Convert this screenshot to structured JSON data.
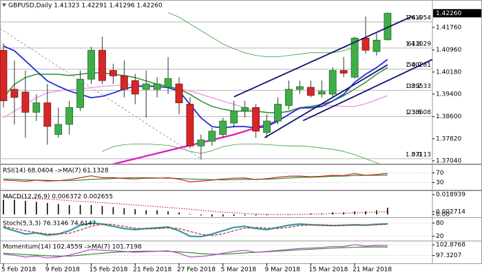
{
  "chart_data": [
    {
      "type": "candlestick",
      "title": "GBPUSD,Daily 1.41323 1.42291 1.41296 1.42260",
      "categories": [
        "5 Feb 2018",
        null,
        null,
        null,
        "9 Feb 2018",
        null,
        null,
        null,
        "15 Feb 2018",
        null,
        null,
        null,
        "21 Feb 2018",
        null,
        null,
        null,
        "27 Feb 2018",
        null,
        null,
        null,
        "5 Mar 2018",
        null,
        null,
        null,
        "9 Mar 2018",
        null,
        null,
        null,
        "15 Mar 2018",
        null,
        null,
        null,
        "21 Mar 2018",
        null,
        null,
        null
      ],
      "open": [
        1.40951,
        1.39568,
        1.39473,
        1.38757,
        1.39091,
        1.3797,
        1.38328,
        1.38924,
        1.39926,
        1.40951,
        1.40236,
        1.40045,
        1.39878,
        1.39568,
        1.39568,
        1.3964,
        1.39759,
        1.39043,
        1.37565,
        1.37732,
        1.3797,
        1.38376,
        1.38805,
        1.38924,
        1.38042,
        1.38447,
        1.38996,
        1.39568,
        1.3964,
        1.39401,
        1.39401,
        1.40236,
        1.39997,
        1.41381,
        1.40904,
        1.41323
      ],
      "high": [
        1.4119,
        1.40594,
        1.40236,
        1.39401,
        1.39759,
        1.38924,
        1.39163,
        1.40236,
        1.41071,
        1.41428,
        1.40474,
        1.40594,
        1.40117,
        1.40236,
        1.39997,
        1.40713,
        1.39997,
        1.39282,
        1.3797,
        1.38209,
        1.38566,
        1.39163,
        1.39163,
        1.39043,
        1.38686,
        1.39282,
        1.39878,
        1.39878,
        1.39878,
        1.39878,
        1.40355,
        1.40713,
        1.41428,
        1.42144,
        1.41548,
        1.42291
      ],
      "low": [
        1.38924,
        1.38328,
        1.37851,
        1.38447,
        1.37612,
        1.37851,
        1.3797,
        1.38805,
        1.39759,
        1.39759,
        1.39759,
        1.39282,
        1.39043,
        1.38566,
        1.39282,
        1.39401,
        1.38686,
        1.37493,
        1.37088,
        1.37565,
        1.37851,
        1.38209,
        1.38566,
        1.37851,
        1.37851,
        1.38328,
        1.38853,
        1.39401,
        1.39282,
        1.39282,
        1.39282,
        1.39997,
        1.3995,
        1.40832,
        1.40761,
        1.41296
      ],
      "close": [
        1.39163,
        1.39282,
        1.38757,
        1.39091,
        1.38256,
        1.38328,
        1.38924,
        1.39926,
        1.40951,
        1.39878,
        1.40045,
        1.39568,
        1.39401,
        1.39759,
        1.39759,
        1.3995,
        1.39091,
        1.37565,
        1.37779,
        1.38089,
        1.38447,
        1.38805,
        1.38924,
        1.38089,
        1.38447,
        1.39043,
        1.39568,
        1.39664,
        1.39353,
        1.39497,
        1.40236,
        1.4014,
        1.41381,
        1.40951,
        1.41309,
        1.4226
      ],
      "up_color": "#3fae49",
      "down_color": "#d62728",
      "ylim": [
        1.3694,
        1.4268
      ],
      "yticks": [
        {
          "value": 1.4176,
          "label": "1.41760"
        },
        {
          "value": 1.4096,
          "label": "1.40960"
        },
        {
          "value": 1.4018,
          "label": "1.40180"
        },
        {
          "value": 1.394,
          "label": "1.39400"
        },
        {
          "value": 1.386,
          "label": "1.38600"
        },
        {
          "value": 1.3782,
          "label": "1.37820"
        },
        {
          "value": 1.3704,
          "label": "1.37040"
        }
      ],
      "last_price": {
        "value": 1.4226,
        "label": "1.42260"
      },
      "fib_levels": [
        {
          "ratio": 76.4,
          "price": 1.41954
        },
        {
          "ratio": 61.8,
          "price": 1.41029
        },
        {
          "ratio": {
            "value": 50,
            "label": "50.0"
          },
          "price": 1.40281
        },
        {
          "ratio": 38.2,
          "price": 1.39533
        },
        {
          "ratio": 23.6,
          "price": 1.38608
        },
        {
          "ratio": {
            "value": 0,
            "label": "0.0"
          },
          "price": 1.37113
        }
      ],
      "series": [
        {
          "color": "#3a9a3a",
          "width": 0.8,
          "values": [
            null,
            null,
            null,
            null,
            null,
            null,
            null,
            null,
            null,
            null,
            null,
            null,
            null,
            null,
            null,
            1.42286,
            1.4212,
            1.41883,
            1.41645,
            1.41408,
            1.41171,
            1.41005,
            1.40862,
            1.40768,
            1.4072,
            1.4072,
            1.40768,
            1.40815,
            1.40862,
            1.40862,
            1.40862,
            1.40933,
            1.41052,
            null,
            null,
            null
          ]
        },
        {
          "color": "#3a9a3a",
          "width": 0.8,
          "values": [
            null,
            null,
            null,
            null,
            null,
            null,
            null,
            null,
            null,
            1.37374,
            1.3754,
            1.37611,
            1.37635,
            1.37635,
            1.37611,
            1.37588,
            1.37493,
            1.37374,
            1.37303,
            1.37398,
            1.3754,
            1.37611,
            1.37635,
            1.37635,
            1.37611,
            1.37588,
            1.37564,
            1.37564,
            1.3754,
            1.37493,
            1.37445,
            1.37374,
            1.37255,
            1.37113,
            1.36971,
            1.36828
          ]
        },
        {
          "color": "#eda6e3",
          "width": 1.6,
          "values": [
            1.38561,
            1.38798,
            1.39035,
            1.39272,
            1.39438,
            1.3951,
            1.39557,
            1.39581,
            1.39628,
            1.39676,
            1.397,
            1.39723,
            1.39723,
            1.397,
            1.39676,
            1.39628,
            1.39581,
            1.3951,
            1.39391,
            1.39272,
            1.39154,
            1.39035,
            1.38916,
            1.38798,
            1.3875,
            1.38727,
            1.38774,
            1.38869,
            1.38964,
            1.38988,
            1.38988,
            1.38964,
            1.38964,
            1.39059,
            1.39201,
            1.39344
          ]
        },
        {
          "color": "#e020c0",
          "width": 2.4,
          "values": [
            null,
            null,
            null,
            null,
            null,
            null,
            null,
            null,
            null,
            1.36828,
            1.36923,
            1.37018,
            1.37113,
            1.37208,
            1.37303,
            1.37398,
            1.37493,
            1.37588,
            1.37682,
            1.37777,
            1.37872,
            1.37967,
            1.38086,
            1.38205,
            1.38323,
            1.38442,
            null,
            null,
            null,
            null,
            null,
            null,
            null,
            null,
            null,
            null
          ]
        },
        {
          "color": "#2a8f2a",
          "width": 1.5,
          "values": [
            1.39272,
            1.39747,
            1.39984,
            1.40103,
            1.40103,
            1.40103,
            1.40056,
            1.40103,
            1.4015,
            1.4015,
            1.40103,
            1.40056,
            1.39984,
            1.39866,
            1.39747,
            1.39676,
            1.39581,
            1.39391,
            1.39154,
            1.38964,
            1.38869,
            1.38798,
            1.38798,
            1.38798,
            1.3875,
            1.38727,
            1.38798,
            1.38916,
            1.38964,
            1.39035,
            1.39154,
            1.39344,
            1.39581,
            1.39818,
            1.40103,
            1.4034
          ]
        },
        {
          "color": "#1a2fd0",
          "width": 1.8,
          "values": [
            1.411,
            1.40933,
            1.40578,
            1.40222,
            1.39866,
            1.39676,
            1.3951,
            1.39391,
            1.39272,
            1.3932,
            1.39438,
            1.39581,
            1.39676,
            1.39676,
            1.39676,
            1.39628,
            1.3951,
            1.39035,
            1.38561,
            1.38252,
            1.38205,
            1.38252,
            1.38252,
            1.38205,
            1.38252,
            1.38442,
            1.38679,
            1.38916,
            1.38916,
            1.38964,
            1.39154,
            1.39391,
            1.39818,
            1.40103,
            1.4034,
            1.40625
          ]
        }
      ],
      "trendlines": [
        {
          "color": "#10106e",
          "x": [
            21.0,
            37.2
          ],
          "y": [
            1.39304,
            1.42145
          ]
        },
        {
          "color": "#10106e",
          "x": [
            23.8,
            35.0
          ],
          "y": [
            1.37859,
            1.40435
          ]
        },
        {
          "color": "#10106e",
          "x": [
            27.3,
            39.1
          ],
          "y": [
            1.38461,
            1.40628
          ]
        },
        {
          "color": "#9a9a9a",
          "dash": true,
          "x": [
            -0.3,
            17.9
          ],
          "y": [
            1.41712,
            1.37136
          ]
        }
      ]
    },
    {
      "type": "line",
      "title": "RSI(14) 68.0404 ->MA(7) 61.1328",
      "ylim": [
        0,
        100
      ],
      "yticks": [
        70,
        30
      ],
      "series": [
        {
          "color": "#2a8f2a",
          "style": "solid",
          "values": [
            45,
            43,
            41,
            40,
            39,
            38,
            38,
            40,
            43,
            45,
            47,
            49,
            50,
            50,
            49,
            48,
            47,
            45,
            43,
            42,
            41,
            42,
            43,
            43,
            44,
            46,
            49,
            51,
            52,
            54,
            56,
            57,
            59,
            60,
            60,
            61.1328
          ]
        },
        {
          "color": "#c0281e",
          "style": "solid",
          "values": [
            40,
            38,
            35,
            40,
            36,
            38,
            42,
            50,
            58,
            50,
            50,
            47,
            45,
            48,
            48,
            50,
            44,
            33,
            36,
            40,
            45,
            48,
            49,
            42,
            46,
            52,
            56,
            57,
            54,
            56,
            60,
            59,
            67,
            60,
            63,
            68.0404
          ]
        }
      ]
    },
    {
      "type": "combo",
      "title": "MACD(12,26,9) 0.006372 0.002655",
      "ylim": [
        -0.0027,
        0.0216
      ],
      "yticks": [
        0.018939,
        0.002714,
        {
          "value": 0,
          "label": "0.00"
        }
      ],
      "series": [
        {
          "color": "#000000",
          "style": "bar",
          "values": [
            0.014,
            0.014,
            0.013,
            0.012,
            0.011,
            0.01,
            0.009,
            0.009,
            0.009,
            0.008,
            0.007,
            0.006,
            0.005,
            0.004,
            0.004,
            0.003,
            0.002,
            0.0005,
            -0.001,
            -0.002,
            -0.002,
            -0.0015,
            -0.001,
            -0.001,
            -0.0008,
            -0.0005,
            0,
            0.0005,
            0.0008,
            0.001,
            0.002,
            0.002,
            0.003,
            0.003,
            0.004,
            0.006372
          ]
        },
        {
          "color": "#c0281e",
          "style": "dotted",
          "values": [
            0.0165,
            0.016,
            0.0155,
            0.015,
            0.0145,
            0.014,
            0.0132,
            0.0125,
            0.012,
            0.0113,
            0.0106,
            0.0098,
            0.009,
            0.0082,
            0.0074,
            0.0066,
            0.0058,
            0.005,
            0.004,
            0.003,
            0.0022,
            0.0015,
            0.0009,
            0.0004,
            0.0001,
            -0.0001,
            -0.0001,
            0.0001,
            0.0003,
            0.0005,
            0.0008,
            0.0011,
            0.0015,
            0.0019,
            0.0023,
            0.002655
          ]
        }
      ]
    },
    {
      "type": "line",
      "title": "Stoch(5,3,3) 76.3146 74.6147",
      "ylim": [
        0,
        100
      ],
      "yticks": [
        80,
        20
      ],
      "series": [
        {
          "color": "#2a9aa8",
          "style": "thick",
          "values": [
            60,
            45,
            30,
            35,
            25,
            30,
            45,
            70,
            80,
            75,
            65,
            55,
            50,
            55,
            58,
            62,
            45,
            20,
            18,
            30,
            45,
            60,
            65,
            55,
            50,
            60,
            70,
            75,
            72,
            70,
            68,
            70,
            72,
            70,
            74,
            76.3146
          ]
        },
        {
          "color": "#c0281e",
          "style": "dashed",
          "values": [
            65,
            55,
            45,
            37,
            30,
            30,
            33,
            48,
            65,
            75,
            73,
            65,
            57,
            53,
            54,
            58,
            55,
            42,
            28,
            23,
            31,
            45,
            57,
            60,
            57,
            55,
            60,
            68,
            72,
            72,
            70,
            69,
            70,
            71,
            72,
            74.6147
          ]
        }
      ]
    },
    {
      "type": "line",
      "title": "Momentum(14) 102.4559 ->MA(7) 101.7198",
      "ylim": [
        93.25,
        104.36
      ],
      "yticks": [
        102.8768,
        97.3207
      ],
      "series": [
        {
          "color": "#2a8f2a",
          "style": "solid",
          "values": [
            98.5,
            98.2,
            97.8,
            97.5,
            97.2,
            97,
            97,
            97.5,
            98,
            98.5,
            99,
            99.3,
            99.5,
            99.6,
            99.6,
            99.5,
            99.2,
            98.8,
            98.3,
            98,
            98,
            98.3,
            98.7,
            99,
            99.3,
            99.6,
            99.9,
            100.3,
            100.6,
            100.9,
            101.2,
            101.4,
            101.6,
            101.7,
            101.8,
            101.7198
          ]
        },
        {
          "color": "#c040d0",
          "style": "solid",
          "values": [
            98,
            97.5,
            96.5,
            97,
            96,
            96.5,
            97.5,
            99,
            100.5,
            100,
            99.8,
            99.5,
            99,
            99.3,
            99.5,
            99.8,
            98.5,
            96.5,
            96.8,
            97.5,
            98.5,
            99.5,
            100,
            99,
            99.5,
            100,
            100.5,
            101,
            101.2,
            101.5,
            102,
            102,
            103,
            102.2,
            102.6,
            102.4559
          ]
        }
      ]
    }
  ]
}
